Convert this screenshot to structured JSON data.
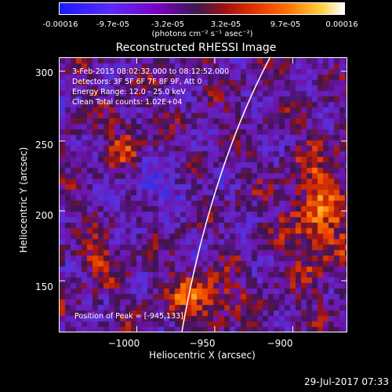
{
  "colorbar": {
    "ticks": [
      "-0.00016",
      "-9.7e-05",
      "-3.2e-05",
      "3.2e-05",
      "9.7e-05",
      "0.00016"
    ],
    "units": "(photons cm⁻² s⁻¹ asec⁻²)"
  },
  "chart_data": {
    "type": "heatmap",
    "title": "Reconstructed RHESSI Image",
    "xlabel": "Heliocentric X (arcsec)",
    "ylabel": "Heliocentric Y (arcsec)",
    "xlim": [
      -1050,
      -865
    ],
    "ylim": [
      113,
      310
    ],
    "xticks": [
      -1000,
      -950,
      -900
    ],
    "xtick_labels": [
      "−1000",
      "−950",
      "−900"
    ],
    "yticks": [
      150,
      200,
      250,
      300
    ],
    "ytick_labels": [
      "150",
      "200",
      "250",
      "300"
    ],
    "colormap": "blue-purple-red-yellow-white",
    "color_range": [
      -0.00016,
      0.00016
    ],
    "info": [
      "3-Feb-2015 08:02:32.000 to 08:12:52.000",
      "Detectors: 3F 5F 6F 7F 8F 9F, Att 0",
      "Energy Range: 12.0 - 25.0 keV",
      "Clean     Total counts: 1.02E+04"
    ],
    "peak_label": "Position of Peak = [-945,133]",
    "limb": true
  },
  "timestamp": "29-Jul-2017 07:33"
}
